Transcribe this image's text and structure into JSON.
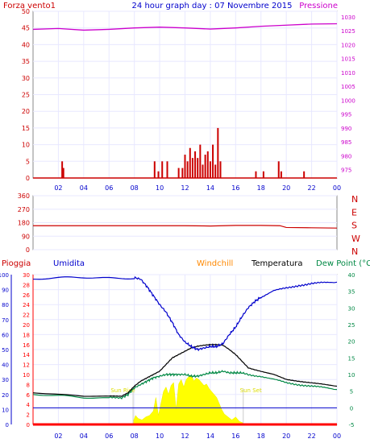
{
  "title": "24 hour graph day : 07 Novembre 2015",
  "colors": {
    "wind": "#cc0000",
    "pressure": "#cc00cc",
    "humidity": "#0000cc",
    "windchill": "#ff8800",
    "temperature": "#000000",
    "dewpoint": "#008844",
    "sun": "#ffff00",
    "rain": "#ff0000",
    "axis": "#0000cc",
    "grid": "#e8e8ff"
  },
  "chart_data": [
    {
      "type": "bar",
      "title": "24 hour graph day : 07 Novembre 2015",
      "left_label": "Forza vento1",
      "right_label": "Pressione",
      "x_ticks": [
        "02",
        "04",
        "06",
        "08",
        "10",
        "12",
        "14",
        "16",
        "18",
        "20",
        "22",
        "00"
      ],
      "y_ticks": [
        "0",
        "5",
        "10",
        "15",
        "20",
        "25",
        "30",
        "35",
        "40",
        "45",
        "50"
      ],
      "y2_ticks": [
        "975",
        "980",
        "985",
        "990",
        "995",
        "1000",
        "1005",
        "1010",
        "1015",
        "1020",
        "1025",
        "1030"
      ],
      "ylim": [
        0,
        50
      ],
      "y2lim": [
        972,
        1032
      ],
      "series": [
        {
          "name": "Forza vento1",
          "kind": "bar",
          "x": [
            2.3,
            2.4,
            9.6,
            9.9,
            10.2,
            10.6,
            11.5,
            11.8,
            12.0,
            12.2,
            12.4,
            12.6,
            12.8,
            13.0,
            13.2,
            13.4,
            13.6,
            13.8,
            14.0,
            14.2,
            14.4,
            14.6,
            14.8,
            17.6,
            18.2,
            19.4,
            19.6,
            21.4
          ],
          "values": [
            5,
            3,
            5,
            2,
            5,
            5,
            3,
            3,
            7,
            5,
            9,
            6,
            8,
            6,
            10,
            4,
            7,
            8,
            5,
            10,
            4,
            15,
            5,
            2,
            2,
            5,
            2,
            2
          ]
        },
        {
          "name": "Pressione",
          "kind": "line",
          "x": [
            0,
            2,
            4,
            6,
            8,
            10,
            12,
            14,
            16,
            18,
            20,
            22,
            24
          ],
          "values": [
            1025.5,
            1025.8,
            1025.2,
            1025.5,
            1026.0,
            1026.3,
            1026.0,
            1025.6,
            1026.0,
            1026.6,
            1027.0,
            1027.4,
            1027.5
          ]
        }
      ]
    },
    {
      "type": "line",
      "y_ticks": [
        "0",
        "90",
        "180",
        "270",
        "360"
      ],
      "right_labels": [
        "N",
        "W",
        "S",
        "E",
        "N"
      ],
      "ylim": [
        0,
        360
      ],
      "series": [
        {
          "name": "Direzione vento",
          "x": [
            0,
            4,
            8,
            12,
            14,
            16,
            18,
            19.5,
            20,
            22,
            24
          ],
          "values": [
            160,
            160,
            160,
            160,
            158,
            162,
            162,
            160,
            148,
            146,
            144
          ]
        }
      ]
    },
    {
      "type": "line",
      "legend": [
        "Pioggia",
        "Umidita",
        "Windchill",
        "Temperatura",
        "Dew Point (°C"
      ],
      "x_ticks": [
        "02",
        "04",
        "06",
        "08",
        "10",
        "12",
        "14",
        "16",
        "18",
        "20",
        "22",
        "00"
      ],
      "y_ticks_humidity": [
        "0",
        "10",
        "20",
        "30",
        "40",
        "50",
        "60",
        "70",
        "80",
        "90",
        "100"
      ],
      "y_ticks_rain": [
        "0",
        "2",
        "4",
        "6",
        "8",
        "10",
        "12",
        "14",
        "16",
        "18",
        "20",
        "22",
        "24",
        "26",
        "28",
        "30"
      ],
      "y2_ticks": [
        "-5",
        "0",
        "5",
        "10",
        "15",
        "20",
        "25",
        "30",
        "35",
        "40"
      ],
      "annotations": [
        "Sun Rise",
        "Sun Set"
      ],
      "humidity_ylim": [
        0,
        100
      ],
      "temp_ylim": [
        -5,
        40
      ],
      "series": [
        {
          "name": "Umidita",
          "x": [
            0,
            2,
            4,
            6,
            8.0,
            8.5,
            9.0,
            9.5,
            10.0,
            10.5,
            11.0,
            11.5,
            12.0,
            12.5,
            13.0,
            13.5,
            14.0,
            14.5,
            15.0,
            15.5,
            16.0,
            16.5,
            17.0,
            17.5,
            18.0,
            19.0,
            20.0,
            21.0,
            22.0,
            23.0,
            24.0
          ],
          "values": [
            97,
            97.5,
            98,
            98,
            98,
            97,
            92,
            86,
            80,
            75,
            68,
            60,
            55,
            52,
            50,
            51,
            52,
            52,
            54,
            60,
            65,
            72,
            78,
            82,
            85,
            89,
            91,
            93,
            94,
            94.5,
            95
          ]
        },
        {
          "name": "Temperatura",
          "x": [
            0,
            2,
            4,
            6,
            7,
            7.5,
            8,
            8.5,
            9,
            9.5,
            10,
            10.5,
            11,
            11.5,
            12,
            12.5,
            13,
            13.5,
            14,
            14.5,
            15,
            15.5,
            16,
            16.5,
            17,
            18,
            19,
            20,
            21,
            22,
            23,
            24
          ],
          "values": [
            4.5,
            4,
            3.5,
            3.5,
            3.5,
            4.5,
            6.5,
            8,
            9,
            10,
            11,
            13,
            15,
            16,
            17,
            18,
            18.5,
            18.8,
            19,
            19,
            18.8,
            17.5,
            16,
            14,
            12,
            11,
            10,
            8.5,
            8,
            7.5,
            7,
            6.5
          ]
        },
        {
          "name": "Dew Point (°C",
          "x": [
            0,
            2,
            4,
            6,
            7,
            7.5,
            8,
            8.5,
            9,
            9.5,
            10,
            10.5,
            11,
            11.5,
            12,
            12.5,
            13,
            13.5,
            14,
            14.5,
            15,
            15.5,
            16,
            16.5,
            17,
            18,
            19,
            20,
            21,
            22,
            23,
            24
          ],
          "values": [
            4,
            3.5,
            3,
            3,
            3,
            4,
            6,
            7,
            8,
            9,
            9.5,
            10,
            10,
            10,
            10,
            9.5,
            9.5,
            10,
            10.5,
            10.5,
            11,
            10.5,
            10.5,
            10.5,
            10,
            9.5,
            8.5,
            7.5,
            7,
            6.5,
            6,
            5.5
          ]
        },
        {
          "name": "Windchill",
          "x": [
            0,
            24
          ],
          "values": [
            -5,
            -5
          ]
        },
        {
          "name": "Pioggia",
          "x": [
            0,
            24
          ],
          "values": [
            0,
            0
          ]
        }
      ]
    }
  ]
}
